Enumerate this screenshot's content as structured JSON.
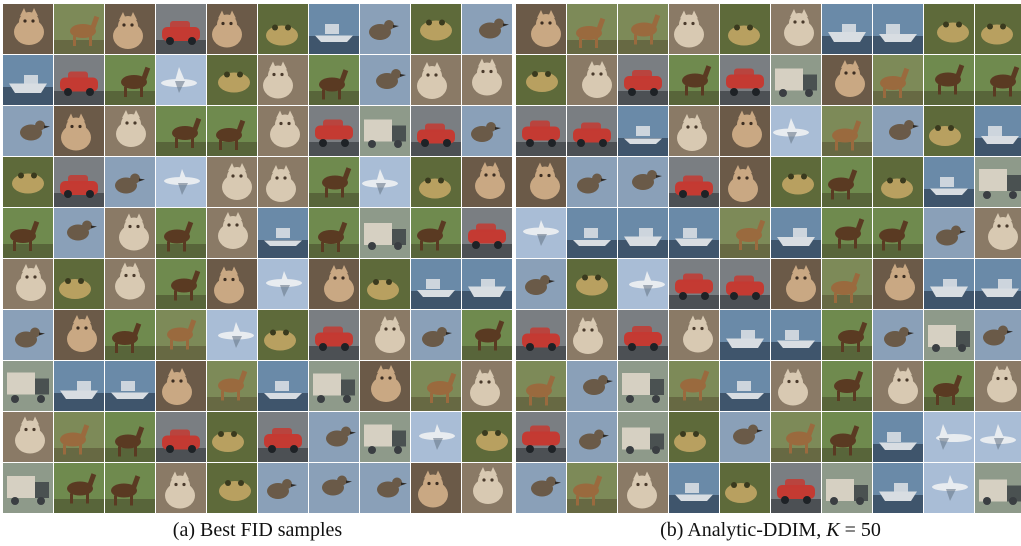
{
  "panels": [
    {
      "caption": "(a) Best FID samples",
      "rows": 10,
      "cols": 10,
      "tiles": [
        "cat",
        "deer",
        "cat",
        "automobile",
        "cat",
        "frog",
        "ship",
        "bird",
        "frog",
        "bird",
        "ship",
        "automobile",
        "horse",
        "airplane",
        "frog",
        "dog",
        "horse",
        "bird",
        "dog",
        "dog",
        "bird",
        "cat",
        "dog",
        "horse",
        "horse",
        "dog",
        "automobile",
        "truck",
        "automobile",
        "bird",
        "frog",
        "automobile",
        "bird",
        "airplane",
        "dog",
        "dog",
        "horse",
        "airplane",
        "frog",
        "cat",
        "horse",
        "bird",
        "dog",
        "horse",
        "dog",
        "ship",
        "horse",
        "truck",
        "horse",
        "automobile",
        "dog",
        "frog",
        "dog",
        "horse",
        "cat",
        "airplane",
        "cat",
        "frog",
        "ship",
        "ship",
        "bird",
        "cat",
        "horse",
        "deer",
        "airplane",
        "frog",
        "automobile",
        "dog",
        "bird",
        "horse",
        "truck",
        "ship",
        "ship",
        "cat",
        "deer",
        "ship",
        "truck",
        "cat",
        "deer",
        "dog",
        "dog",
        "deer",
        "horse",
        "automobile",
        "frog",
        "automobile",
        "bird",
        "truck",
        "airplane",
        "frog",
        "truck",
        "horse",
        "horse",
        "dog",
        "frog",
        "bird",
        "bird",
        "bird",
        "cat",
        "dog"
      ]
    },
    {
      "caption_prefix": "(b) Analytic-DDIM, ",
      "caption_var": "K",
      "caption_suffix": " = 50",
      "rows": 10,
      "cols": 10,
      "tiles": [
        "cat",
        "deer",
        "deer",
        "dog",
        "frog",
        "dog",
        "ship",
        "ship",
        "frog",
        "frog",
        "frog",
        "dog",
        "automobile",
        "horse",
        "automobile",
        "truck",
        "cat",
        "deer",
        "horse",
        "horse",
        "automobile",
        "automobile",
        "ship",
        "dog",
        "cat",
        "airplane",
        "deer",
        "bird",
        "frog",
        "ship",
        "cat",
        "bird",
        "bird",
        "automobile",
        "cat",
        "frog",
        "horse",
        "frog",
        "ship",
        "truck",
        "airplane",
        "ship",
        "ship",
        "ship",
        "deer",
        "ship",
        "horse",
        "horse",
        "bird",
        "dog",
        "bird",
        "frog",
        "airplane",
        "automobile",
        "automobile",
        "cat",
        "deer",
        "cat",
        "ship",
        "ship",
        "automobile",
        "dog",
        "automobile",
        "dog",
        "ship",
        "ship",
        "horse",
        "bird",
        "truck",
        "bird",
        "deer",
        "bird",
        "truck",
        "deer",
        "ship",
        "dog",
        "horse",
        "dog",
        "horse",
        "dog",
        "automobile",
        "bird",
        "truck",
        "frog",
        "bird",
        "deer",
        "horse",
        "ship",
        "airplane",
        "airplane",
        "bird",
        "deer",
        "dog",
        "ship",
        "frog",
        "automobile",
        "truck",
        "ship",
        "airplane",
        "truck"
      ]
    }
  ],
  "palettes": {
    "cat": {
      "bg": "#6b5a48",
      "fg": "#c9a883",
      "accent": "#3d2e22"
    },
    "dog": {
      "bg": "#8a7a66",
      "fg": "#d8c9b2",
      "accent": "#4a3b2c"
    },
    "horse": {
      "bg": "#6f8a4e",
      "fg": "#5a3a22",
      "accent": "#2e2016"
    },
    "deer": {
      "bg": "#7d8a58",
      "fg": "#9a6a3e",
      "accent": "#3e2c1c"
    },
    "frog": {
      "bg": "#5e6a3a",
      "fg": "#b8a060",
      "accent": "#3a3a1e"
    },
    "bird": {
      "bg": "#8aa0b8",
      "fg": "#6a5a48",
      "accent": "#2e2a26"
    },
    "airplane": {
      "bg": "#a9bdd6",
      "fg": "#e8ecf0",
      "accent": "#6a7a8a"
    },
    "ship": {
      "bg": "#6a8aa8",
      "fg": "#d8dde2",
      "accent": "#2e3e52"
    },
    "automobile": {
      "bg": "#7a7e82",
      "fg": "#c43a32",
      "accent": "#1e2226"
    },
    "truck": {
      "bg": "#8e9a8a",
      "fg": "#d6d0c2",
      "accent": "#3a3e42"
    }
  }
}
